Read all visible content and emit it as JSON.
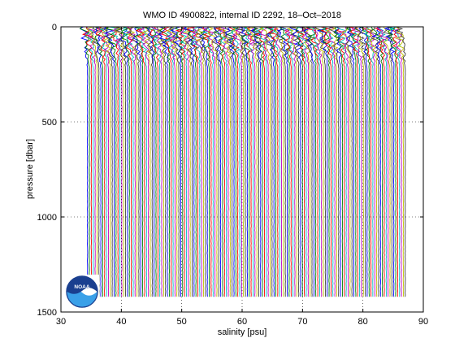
{
  "chart_data": {
    "type": "line",
    "title": "WMO ID 4900822, internal ID 2292, 18–Oct–2018",
    "xlabel": "salinity [psu]",
    "ylabel": "pressure [dbar]",
    "xlim": [
      30,
      90
    ],
    "ylim": [
      0,
      1500
    ],
    "y_reversed": true,
    "grid": true,
    "xticks": [
      30,
      40,
      50,
      60,
      70,
      80,
      90
    ],
    "yticks": [
      0,
      500,
      1000,
      1500
    ],
    "xtick_labels": [
      "30",
      "40",
      "50",
      "60",
      "70",
      "80",
      "90"
    ],
    "ytick_labels": [
      "0",
      "500",
      "1000",
      "1500"
    ],
    "profiles": {
      "count": 168,
      "first_offset_psu": 34.4,
      "offset_step_psu": 0.315,
      "pressure_max": 1420,
      "colors": [
        "#0000ff",
        "#008000",
        "#ff0000",
        "#00bfbf",
        "#bf00bf",
        "#bfbf00",
        "#404040"
      ]
    },
    "logo": {
      "name": "noaa-logo",
      "text": "NOAA"
    }
  }
}
